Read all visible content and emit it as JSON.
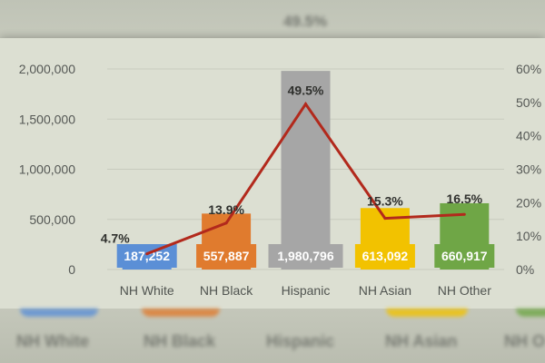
{
  "chart_data": {
    "type": "bar",
    "categories": [
      "NH White",
      "NH Black",
      "Hispanic",
      "NH Asian",
      "NH Other"
    ],
    "series": [
      {
        "values": [
          187252,
          557887,
          1980796,
          613092,
          660917
        ],
        "labels": [
          "187,252",
          "557,887",
          "1,980,796",
          "613,092",
          "660,917"
        ],
        "colors": [
          "#5b8fd6",
          "#e07b2e",
          "#a6a6a6",
          "#f2c200",
          "#6fa646"
        ]
      },
      {
        "type": "line",
        "axis": "right",
        "values": [
          4.7,
          13.9,
          49.5,
          15.3,
          16.5
        ],
        "labels": [
          "4.7%",
          "13.9%",
          "49.5%",
          "15.3%",
          "16.5%"
        ],
        "color": "#b2291c"
      }
    ],
    "left_axis": {
      "ylim": [
        0,
        2000000
      ],
      "ticks": [
        "0",
        "500,000",
        "1,000,000",
        "1,500,000",
        "2,000,000"
      ]
    },
    "right_axis": {
      "ylim": [
        0,
        60
      ],
      "ticks": [
        "0%",
        "10%",
        "20%",
        "30%",
        "40%",
        "50%",
        "60%"
      ]
    },
    "grid": true,
    "legend": "none"
  },
  "background": {
    "ghost_top_label": "49.5%",
    "ghost_category_labels": [
      "NH White",
      "NH Black",
      "Hispanic",
      "NH Asian",
      "NH O"
    ]
  }
}
